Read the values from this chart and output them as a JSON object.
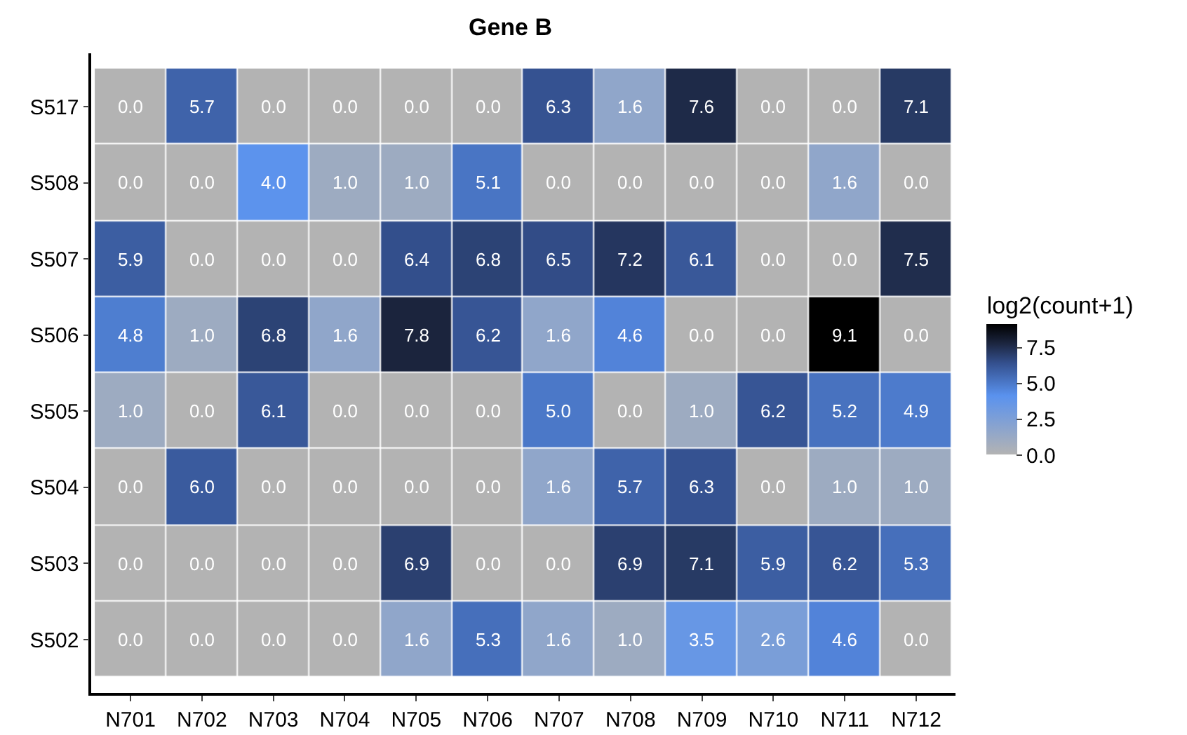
{
  "chart_data": {
    "type": "heatmap",
    "title": "Gene B",
    "clabel": "log2(count+1)",
    "categories": [
      "N701",
      "N702",
      "N703",
      "N704",
      "N705",
      "N706",
      "N707",
      "N708",
      "N709",
      "N710",
      "N711",
      "N712"
    ],
    "y_categories": [
      "S517",
      "S508",
      "S507",
      "S506",
      "S505",
      "S504",
      "S503",
      "S502"
    ],
    "cells": [
      [
        0.0,
        5.7,
        0.0,
        0.0,
        0.0,
        0.0,
        6.3,
        1.6,
        7.6,
        0.0,
        0.0,
        7.1
      ],
      [
        0.0,
        0.0,
        4.0,
        1.0,
        1.0,
        5.1,
        0.0,
        0.0,
        0.0,
        0.0,
        1.6,
        0.0
      ],
      [
        5.9,
        0.0,
        0.0,
        0.0,
        6.4,
        6.8,
        6.5,
        7.2,
        6.1,
        0.0,
        0.0,
        7.5
      ],
      [
        4.8,
        1.0,
        6.8,
        1.6,
        7.8,
        6.2,
        1.6,
        4.6,
        0.0,
        0.0,
        9.1,
        0.0
      ],
      [
        1.0,
        0.0,
        6.1,
        0.0,
        0.0,
        0.0,
        5.0,
        0.0,
        1.0,
        6.2,
        5.2,
        4.9
      ],
      [
        0.0,
        6.0,
        0.0,
        0.0,
        0.0,
        0.0,
        1.6,
        5.7,
        6.3,
        0.0,
        1.0,
        1.0
      ],
      [
        0.0,
        0.0,
        0.0,
        0.0,
        6.9,
        0.0,
        0.0,
        6.9,
        7.1,
        5.9,
        6.2,
        5.3
      ],
      [
        0.0,
        0.0,
        0.0,
        0.0,
        1.6,
        5.3,
        1.6,
        1.0,
        3.5,
        2.6,
        4.6,
        0.0
      ]
    ],
    "cell_labels": [
      [
        "0.0",
        "5.7",
        "0.0",
        "0.0",
        "0.0",
        "0.0",
        "6.3",
        "1.6",
        "7.6",
        "0.0",
        "0.0",
        "7.1"
      ],
      [
        "0.0",
        "0.0",
        "4.0",
        "1.0",
        "1.0",
        "5.1",
        "0.0",
        "0.0",
        "0.0",
        "0.0",
        "1.6",
        "0.0"
      ],
      [
        "5.9",
        "0.0",
        "0.0",
        "0.0",
        "6.4",
        "6.8",
        "6.5",
        "7.2",
        "6.1",
        "0.0",
        "0.0",
        "7.5"
      ],
      [
        "4.8",
        "1.0",
        "6.8",
        "1.6",
        "7.8",
        "6.2",
        "1.6",
        "4.6",
        "0.0",
        "0.0",
        "9.1",
        "0.0"
      ],
      [
        "1.0",
        "0.0",
        "6.1",
        "0.0",
        "0.0",
        "0.0",
        "5.0",
        "0.0",
        "1.0",
        "6.2",
        "5.2",
        "4.9"
      ],
      [
        "0.0",
        "6.0",
        "0.0",
        "0.0",
        "0.0",
        "0.0",
        "1.6",
        "5.7",
        "6.3",
        "0.0",
        "1.0",
        "1.0"
      ],
      [
        "0.0",
        "0.0",
        "0.0",
        "0.0",
        "6.9",
        "0.0",
        "0.0",
        "6.9",
        "7.1",
        "5.9",
        "6.2",
        "5.3"
      ],
      [
        "0.0",
        "0.0",
        "0.0",
        "0.0",
        "1.6",
        "5.3",
        "1.6",
        "1.0",
        "3.5",
        "2.6",
        "4.6",
        "0.0"
      ]
    ],
    "clim": [
      0,
      9.1
    ],
    "cticks": [
      {
        "value": 0,
        "label": "0.0"
      },
      2.5,
      {
        "value": 5,
        "label": "5.0"
      },
      7.5
    ],
    "grid": false
  }
}
